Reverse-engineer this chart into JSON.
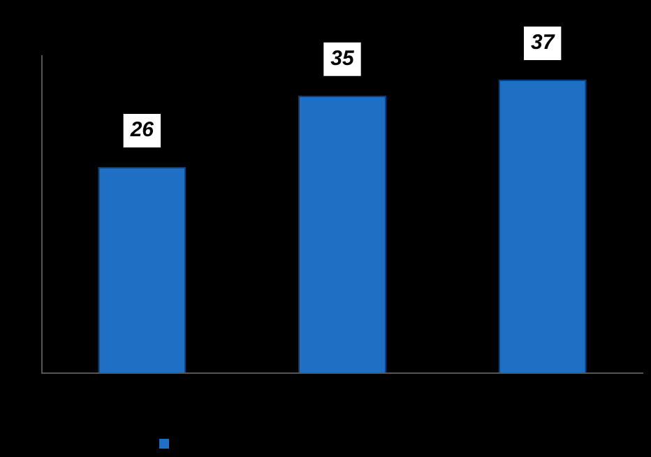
{
  "chart_data": {
    "type": "bar",
    "categories": [
      null,
      null,
      null
    ],
    "series": [
      {
        "color": "#1f6fc4",
        "values": [
          26,
          35,
          37
        ]
      }
    ],
    "ylim": [
      0,
      40
    ],
    "tick_labels": false,
    "grid": false,
    "data_labels": true
  }
}
